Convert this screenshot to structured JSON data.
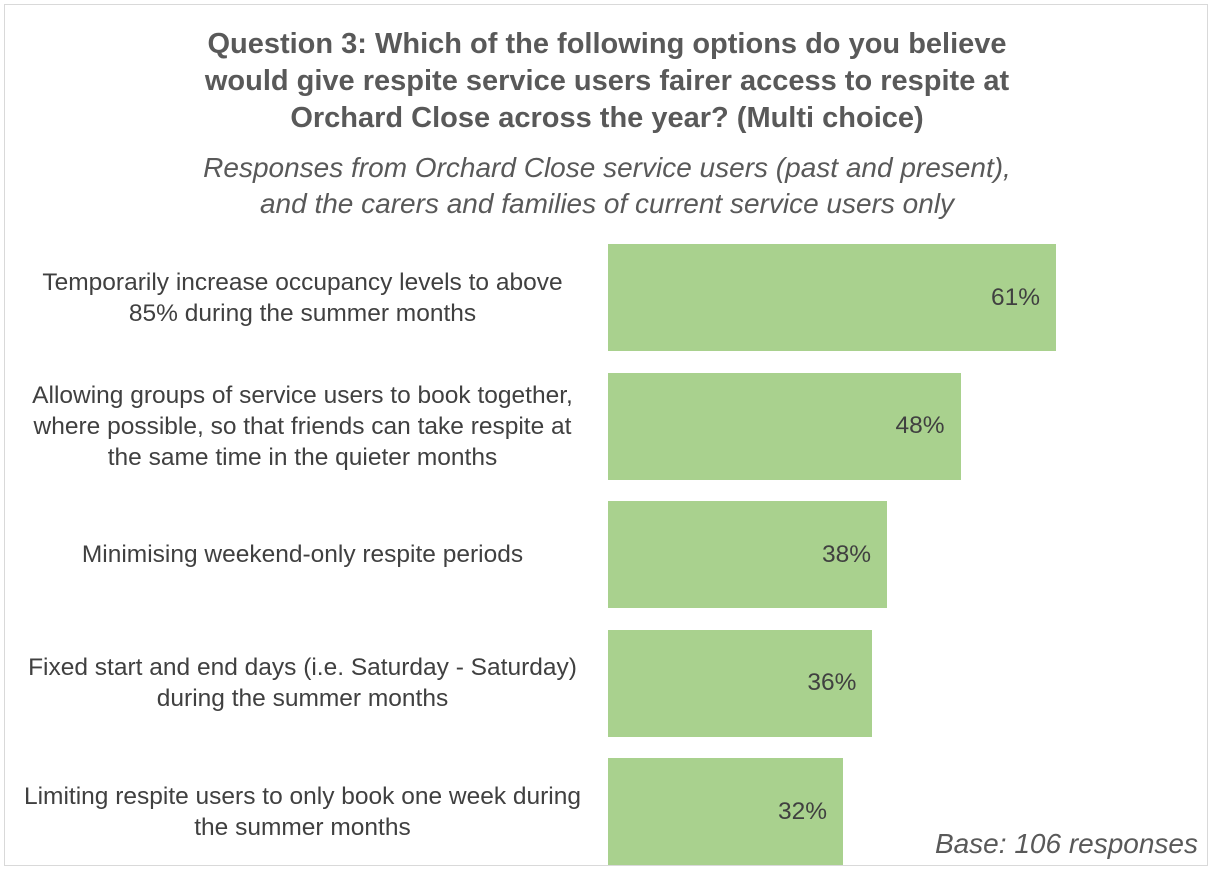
{
  "chart_data": {
    "type": "bar",
    "orientation": "horizontal",
    "title": "Question 3: Which of the following options do you believe would give respite service users fairer access to respite at Orchard Close across the year? (Multi choice)",
    "subtitle": "Responses from Orchard Close service users (past and present), and the carers and families of current service users only",
    "categories": [
      "Temporarily increase occupancy levels to above 85% during the summer months",
      "Allowing groups of service users to book together, where possible, so that friends can take respite at the same time in the quieter months",
      "Minimising weekend-only respite periods",
      "Fixed start and end days (i.e. Saturday - Saturday) during the summer months",
      "Limiting respite users to only book one week during the summer months"
    ],
    "values": [
      61,
      48,
      38,
      36,
      32
    ],
    "data_labels": [
      "61%",
      "48%",
      "38%",
      "36%",
      "32%"
    ],
    "bar_color": "#a9d18e",
    "grid": false,
    "legend": "none",
    "note": "Base: 106 responses"
  }
}
